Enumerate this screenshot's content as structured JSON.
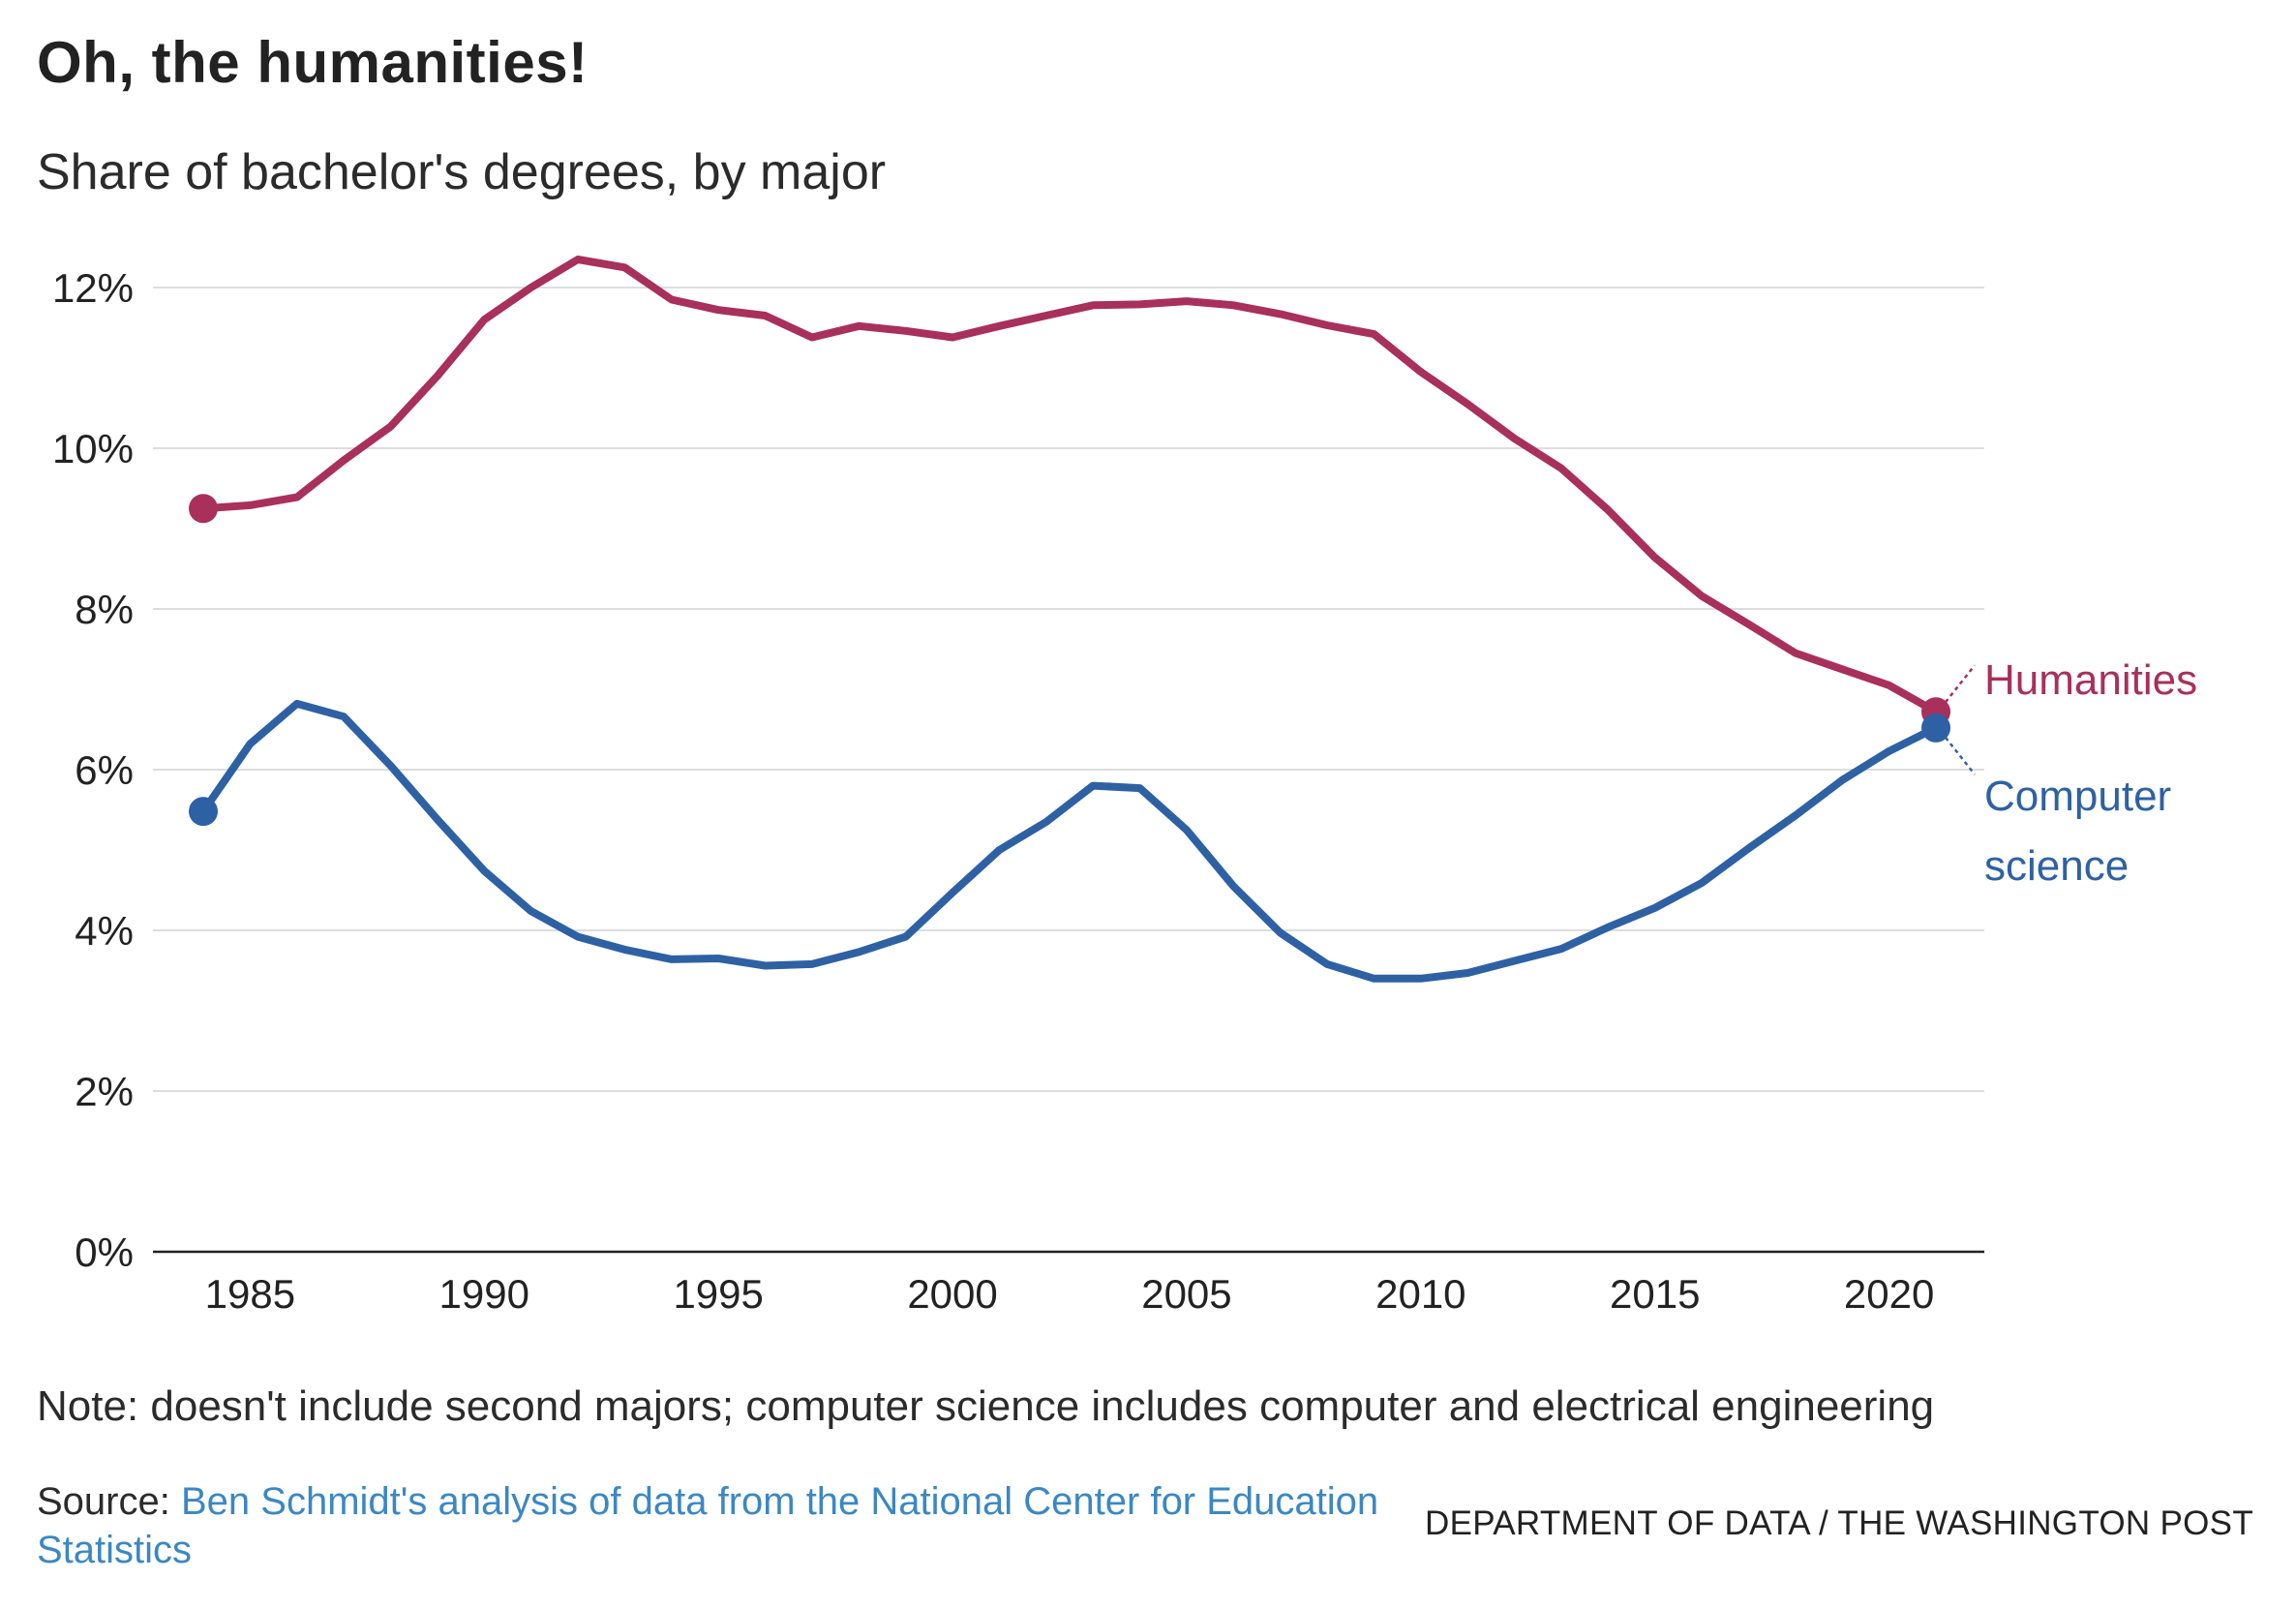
{
  "title": "Oh, the humanities!",
  "subtitle": "Share of bachelor's degrees, by major",
  "note": "Note: doesn't include second majors; computer science includes computer and electrical engineering",
  "source": {
    "prefix": "Source:",
    "link_text": "Ben Schmidt's analysis of data from the National Center for Education Statistics"
  },
  "credit": "DEPARTMENT OF DATA / THE WASHINGTON POST",
  "colors": {
    "humanities": "#a8305a",
    "computer_science": "#2e61a4",
    "grid": "#dddddd",
    "axis": "#222222",
    "link": "#3b87c4"
  },
  "chart_data": {
    "type": "line",
    "title": "",
    "xlabel": "",
    "ylabel": "",
    "ylim": [
      0,
      12
    ],
    "xlim": [
      1984,
      2021
    ],
    "y_ticks": [
      0,
      2,
      4,
      6,
      8,
      10,
      12
    ],
    "y_tick_labels": [
      "0%",
      "2%",
      "4%",
      "6%",
      "8%",
      "10%",
      "12%"
    ],
    "x_ticks": [
      1985,
      1990,
      1995,
      2000,
      2005,
      2010,
      2015,
      2020
    ],
    "x_tick_labels": [
      "1985",
      "1990",
      "1995",
      "2000",
      "2005",
      "2010",
      "2015",
      "2020"
    ],
    "grid": "horizontal",
    "x": [
      1984,
      1985,
      1986,
      1987,
      1988,
      1989,
      1990,
      1991,
      1992,
      1993,
      1994,
      1995,
      1996,
      1997,
      1998,
      1999,
      2000,
      2001,
      2002,
      2003,
      2004,
      2005,
      2006,
      2007,
      2008,
      2009,
      2010,
      2011,
      2012,
      2013,
      2014,
      2015,
      2016,
      2017,
      2018,
      2019,
      2020,
      2021
    ],
    "series": [
      {
        "name": "Humanities",
        "color": "#a8305a",
        "values": [
          9.25,
          9.29,
          9.39,
          9.85,
          10.27,
          10.9,
          11.6,
          12.0,
          12.35,
          12.25,
          11.85,
          11.72,
          11.65,
          11.38,
          11.52,
          11.46,
          11.38,
          11.52,
          11.65,
          11.78,
          11.79,
          11.83,
          11.78,
          11.67,
          11.53,
          11.42,
          10.95,
          10.55,
          10.12,
          9.75,
          9.23,
          8.64,
          8.16,
          7.81,
          7.45,
          7.25,
          7.05,
          6.72
        ]
      },
      {
        "name": "Computer science",
        "label_lines": [
          "Computer",
          "science"
        ],
        "color": "#2e61a4",
        "values": [
          5.48,
          6.32,
          6.82,
          6.66,
          6.05,
          5.38,
          4.74,
          4.24,
          3.92,
          3.76,
          3.64,
          3.65,
          3.56,
          3.58,
          3.73,
          3.92,
          4.47,
          5.0,
          5.35,
          5.8,
          5.77,
          5.25,
          4.55,
          3.97,
          3.58,
          3.4,
          3.4,
          3.47,
          3.62,
          3.77,
          4.04,
          4.28,
          4.59,
          5.02,
          5.43,
          5.87,
          6.23,
          6.52
        ]
      }
    ]
  }
}
